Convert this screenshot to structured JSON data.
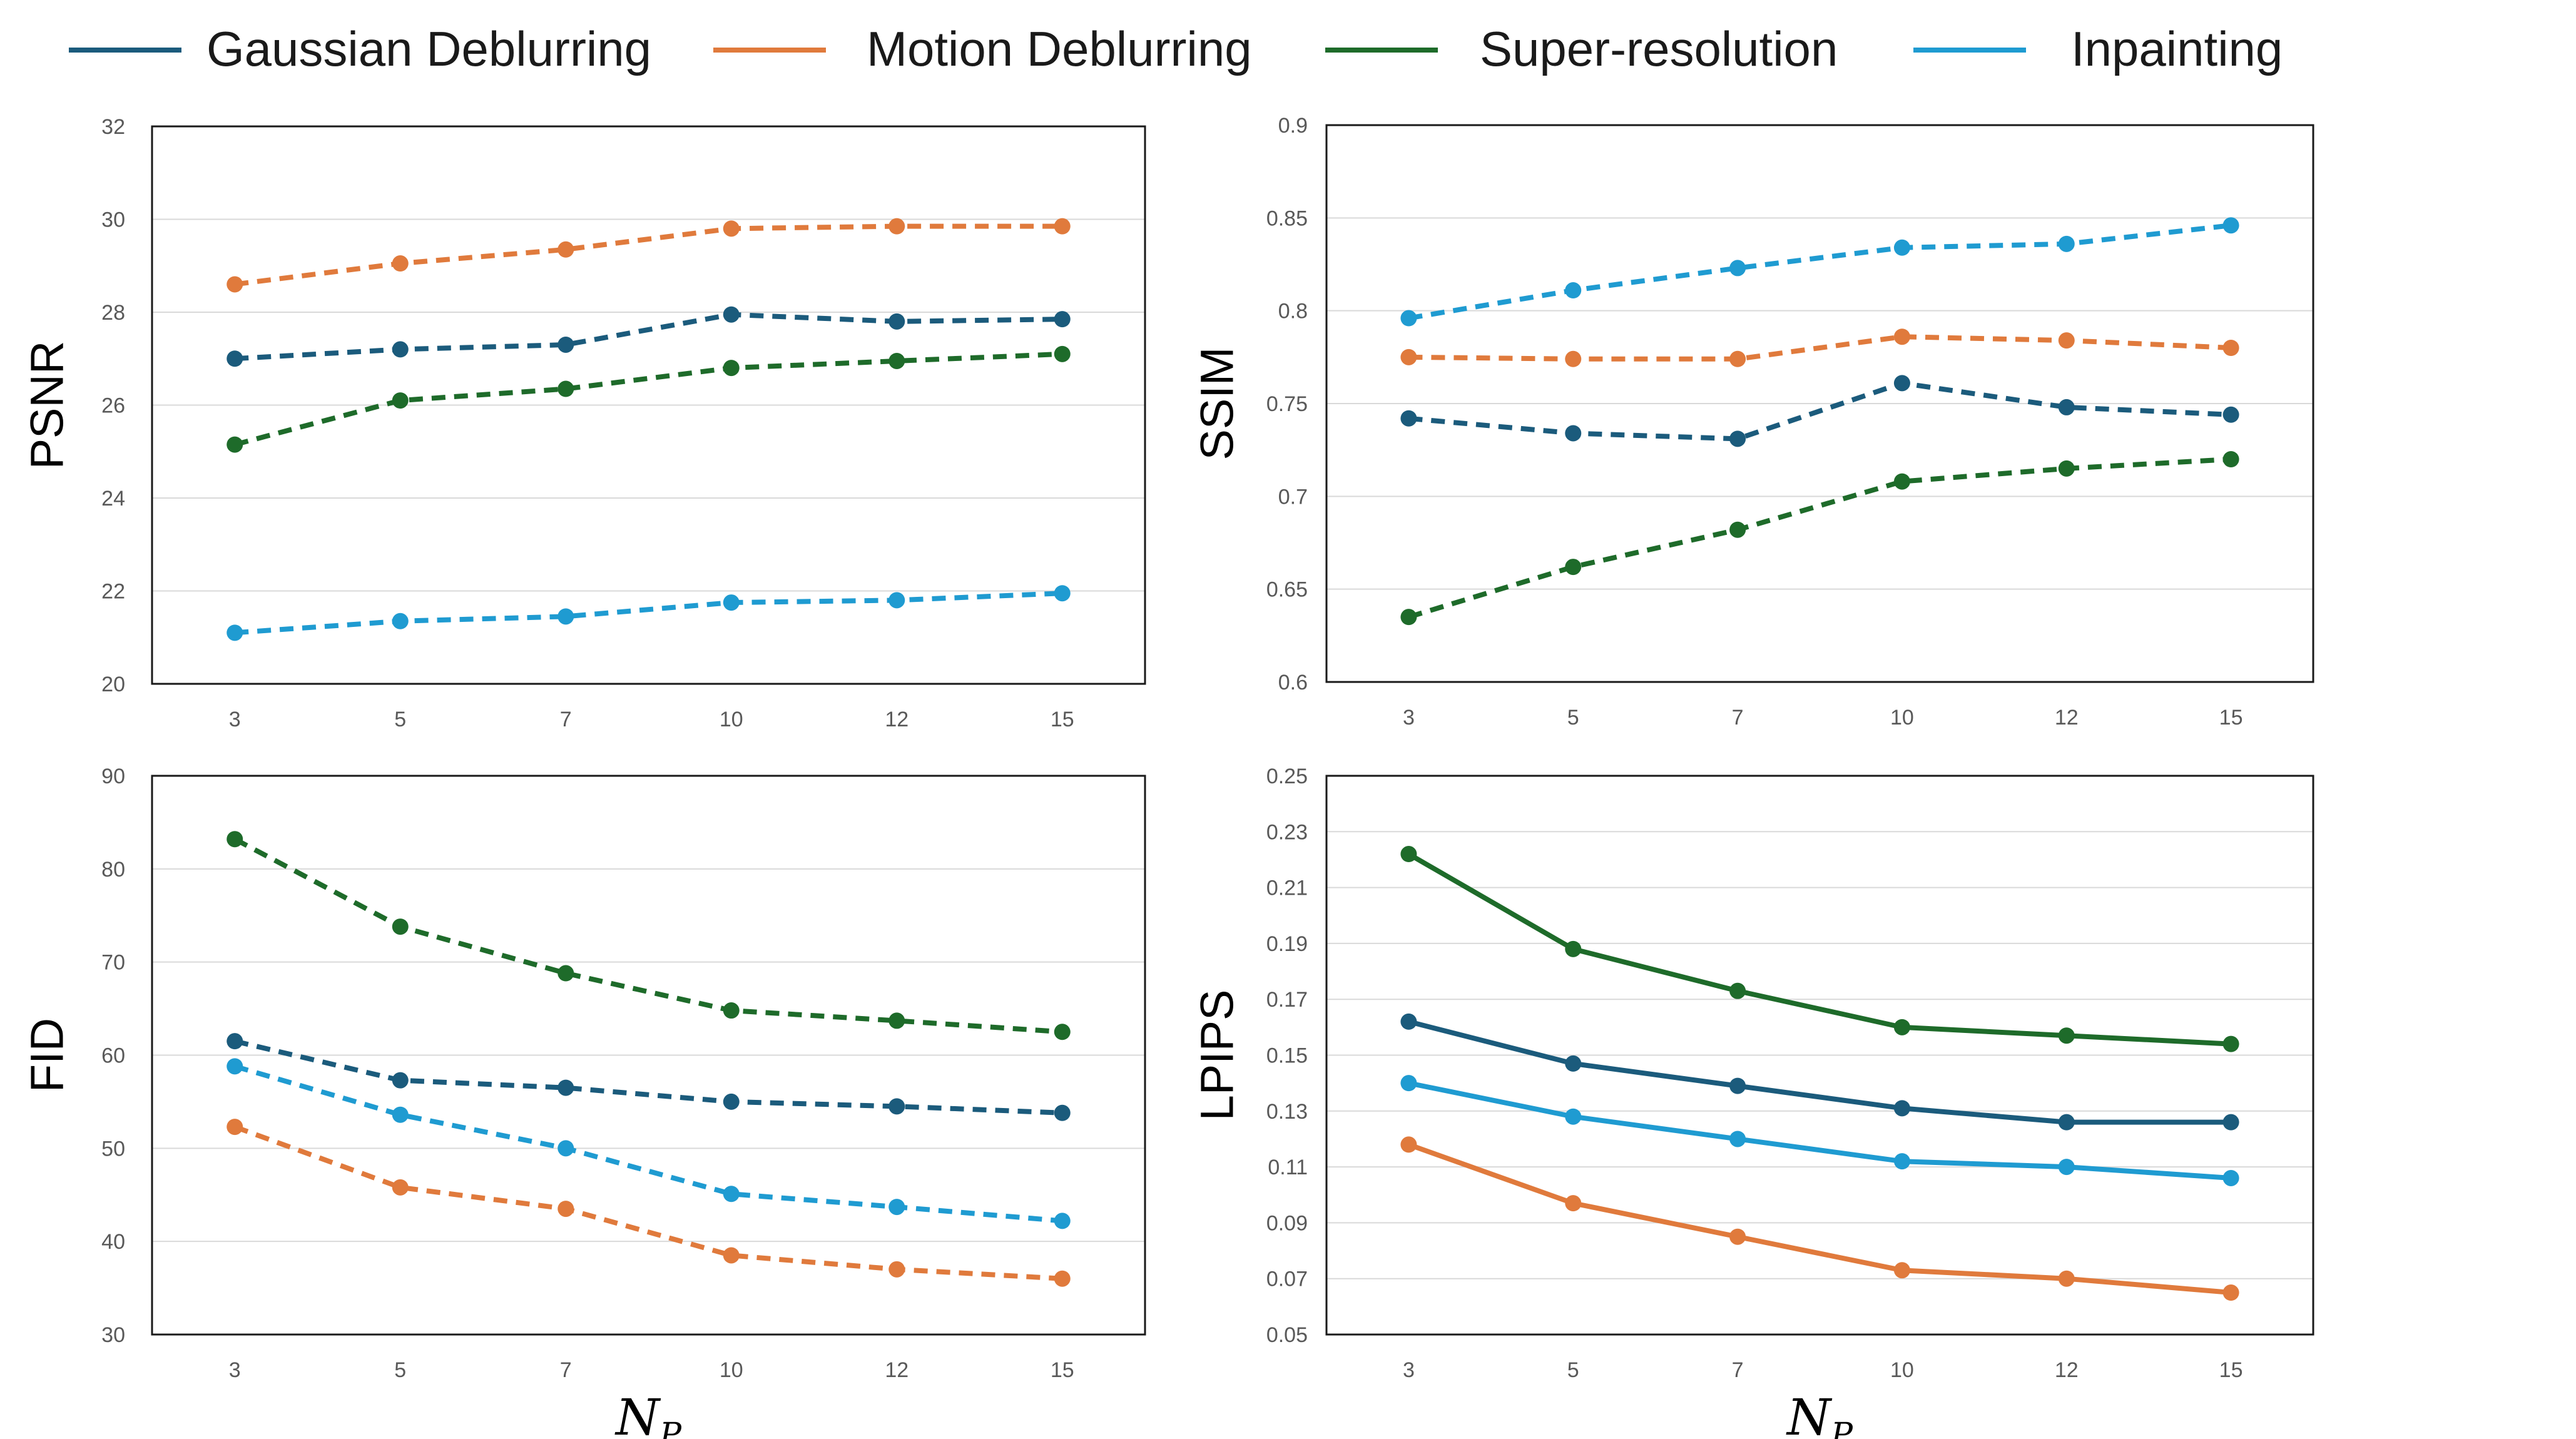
{
  "legend": [
    {
      "name": "Gaussian Deblurring",
      "color": "#1b5b7c"
    },
    {
      "name": "Motion Deblurring",
      "color": "#e07a3c"
    },
    {
      "name": "Super-resolution",
      "color": "#1e6b2a"
    },
    {
      "name": "Inpainting",
      "color": "#1f9bd1"
    }
  ],
  "chart_data": [
    {
      "type": "line",
      "ylabel": "PSNR",
      "xlabel": "",
      "line_style": "dashed",
      "categories": [
        "3",
        "5",
        "7",
        "10",
        "12",
        "15"
      ],
      "ylim": [
        20,
        32
      ],
      "yticks": [
        "20",
        "22",
        "24",
        "26",
        "28",
        "30",
        "32"
      ],
      "grid": true,
      "series": [
        {
          "name": "Gaussian Deblurring",
          "values": [
            27.0,
            27.2,
            27.3,
            27.95,
            27.8,
            27.85
          ]
        },
        {
          "name": "Motion Deblurring",
          "values": [
            28.6,
            29.05,
            29.35,
            29.8,
            29.85,
            29.85
          ]
        },
        {
          "name": "Super-resolution",
          "values": [
            25.15,
            26.1,
            26.35,
            26.8,
            26.95,
            27.1
          ]
        },
        {
          "name": "Inpainting",
          "values": [
            21.1,
            21.35,
            21.45,
            21.75,
            21.8,
            21.95
          ]
        }
      ]
    },
    {
      "type": "line",
      "ylabel": "SSIM",
      "xlabel": "",
      "line_style": "dashed",
      "categories": [
        "3",
        "5",
        "7",
        "10",
        "12",
        "15"
      ],
      "ylim": [
        0.6,
        0.9
      ],
      "yticks": [
        "0.6",
        "0.65",
        "0.7",
        "0.75",
        "0.8",
        "0.85",
        "0.9"
      ],
      "grid": true,
      "series": [
        {
          "name": "Gaussian Deblurring",
          "values": [
            0.742,
            0.734,
            0.731,
            0.761,
            0.748,
            0.744
          ]
        },
        {
          "name": "Motion Deblurring",
          "values": [
            0.775,
            0.774,
            0.774,
            0.786,
            0.784,
            0.78
          ]
        },
        {
          "name": "Super-resolution",
          "values": [
            0.635,
            0.662,
            0.682,
            0.708,
            0.715,
            0.72
          ]
        },
        {
          "name": "Inpainting",
          "values": [
            0.796,
            0.811,
            0.823,
            0.834,
            0.836,
            0.846
          ]
        }
      ]
    },
    {
      "type": "line",
      "ylabel": "FID",
      "xlabel": "N_P",
      "line_style": "dashed",
      "categories": [
        "3",
        "5",
        "7",
        "10",
        "12",
        "15"
      ],
      "ylim": [
        30,
        90
      ],
      "yticks": [
        "30",
        "40",
        "50",
        "60",
        "70",
        "80",
        "90"
      ],
      "grid": true,
      "series": [
        {
          "name": "Gaussian Deblurring",
          "values": [
            61.5,
            57.3,
            56.5,
            55.0,
            54.5,
            53.8
          ]
        },
        {
          "name": "Motion Deblurring",
          "values": [
            52.3,
            45.8,
            43.5,
            38.5,
            37.0,
            36.0
          ]
        },
        {
          "name": "Super-resolution",
          "values": [
            83.2,
            73.8,
            68.8,
            64.8,
            63.7,
            62.5
          ]
        },
        {
          "name": "Inpainting",
          "values": [
            58.8,
            53.6,
            50.0,
            45.1,
            43.7,
            42.2
          ]
        }
      ]
    },
    {
      "type": "line",
      "ylabel": "LPIPS",
      "xlabel": "N_P",
      "line_style": "solid",
      "categories": [
        "3",
        "5",
        "7",
        "10",
        "12",
        "15"
      ],
      "ylim": [
        0.05,
        0.25
      ],
      "yticks": [
        "0.05",
        "0.07",
        "0.09",
        "0.11",
        "0.13",
        "0.15",
        "0.17",
        "0.19",
        "0.21",
        "0.23",
        "0.25"
      ],
      "grid": true,
      "series": [
        {
          "name": "Gaussian Deblurring",
          "values": [
            0.162,
            0.147,
            0.139,
            0.131,
            0.126,
            0.126
          ]
        },
        {
          "name": "Motion Deblurring",
          "values": [
            0.118,
            0.097,
            0.085,
            0.073,
            0.07,
            0.065
          ]
        },
        {
          "name": "Super-resolution",
          "values": [
            0.222,
            0.188,
            0.173,
            0.16,
            0.157,
            0.154
          ]
        },
        {
          "name": "Inpainting",
          "values": [
            0.14,
            0.128,
            0.12,
            0.112,
            0.11,
            0.106
          ]
        }
      ]
    }
  ]
}
